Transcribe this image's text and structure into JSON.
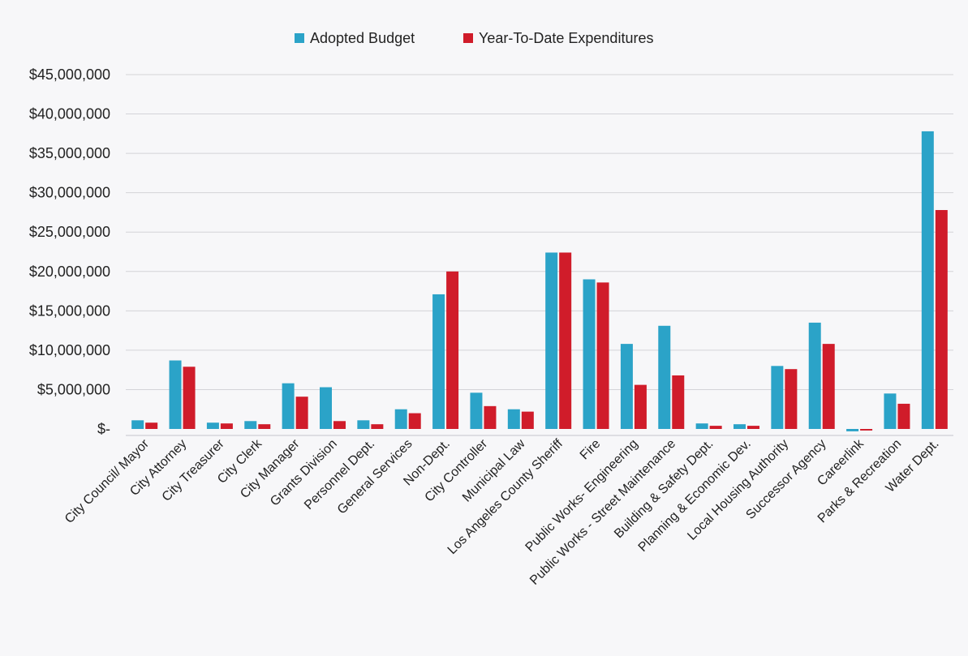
{
  "chart_data": {
    "type": "bar",
    "title": "",
    "xlabel": "",
    "ylabel": "",
    "ylim": [
      0,
      45000000
    ],
    "yticks": [
      0,
      5000000,
      10000000,
      15000000,
      20000000,
      25000000,
      30000000,
      35000000,
      40000000,
      45000000
    ],
    "ytick_labels": [
      "$-",
      "$5,000,000",
      "$10,000,000",
      "$15,000,000",
      "$20,000,000",
      "$25,000,000",
      "$30,000,000",
      "$35,000,000",
      "$40,000,000",
      "$45,000,000"
    ],
    "grid": true,
    "legend_position": "top-center",
    "categories": [
      "City Council/ Mayor",
      "City Attorney",
      "City Treasurer",
      "City Clerk",
      "City Manager",
      "Grants Division",
      "Personnel Dept.",
      "General Services",
      "Non-Dept.",
      "City Controller",
      "Municipal Law",
      "Los Angeles County Sheriff",
      "Fire",
      "Public Works- Engineering",
      "Public Works - Street Maintenance",
      "Building & Safety Dept.",
      "Planning & Economic Dev.",
      "Local Housing Authority",
      "Successor Agency",
      "Careerlink",
      "Parks & Recreation",
      "Water Dept."
    ],
    "series": [
      {
        "name": "Adopted Budget",
        "color": "#2ba3c8",
        "values": [
          1100000,
          8700000,
          800000,
          1000000,
          5800000,
          5300000,
          1100000,
          2500000,
          17100000,
          4600000,
          2500000,
          22400000,
          19000000,
          10800000,
          13100000,
          700000,
          600000,
          8000000,
          13500000,
          -300000,
          4500000,
          37800000
        ]
      },
      {
        "name": "Year-To-Date Expenditures",
        "color": "#d01c2a",
        "values": [
          800000,
          7900000,
          700000,
          600000,
          4100000,
          1000000,
          600000,
          2000000,
          20000000,
          2900000,
          2200000,
          22400000,
          18600000,
          5600000,
          6800000,
          400000,
          400000,
          7600000,
          10800000,
          -200000,
          3200000,
          27800000
        ]
      }
    ]
  }
}
